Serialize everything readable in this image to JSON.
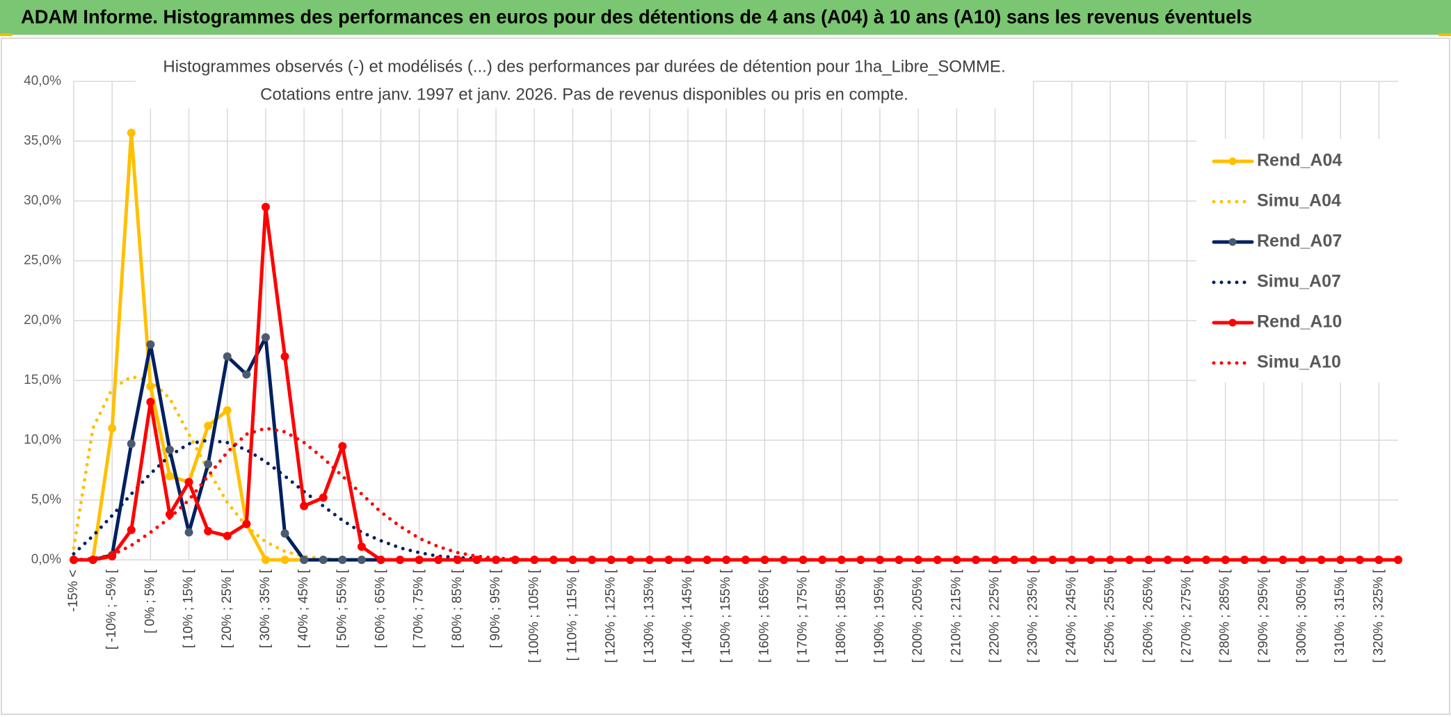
{
  "header": {
    "title": "ADAM Informe. Histogrammes des performances en euros pour des détentions de 4 ans (A04) à 10 ans (A10) sans les revenus éventuels"
  },
  "chart_data": {
    "type": "line",
    "title": [
      "Histogrammes observés (-) et modélisés (...) des performances par durées de détention pour 1ha_Libre_SOMME.",
      "Cotations entre janv. 1997 et janv. 2026. Pas de revenus disponibles ou pris en compte."
    ],
    "categories": [
      "-15% <",
      null,
      "[ -10% ; -5% [",
      null,
      "[ 0% ; 5% [",
      null,
      "[ 10% ; 15% [",
      null,
      "[ 20% ; 25% [",
      null,
      "[ 30% ; 35% [",
      null,
      "[ 40% ; 45% [",
      null,
      "[ 50% ; 55% [",
      null,
      "[ 60% ; 65% [",
      null,
      "[ 70% ; 75% [",
      null,
      "[ 80% ; 85% [",
      null,
      "[ 90% ; 95% [",
      null,
      "[ 100% ; 105% [",
      null,
      "[ 110% ; 115% [",
      null,
      "[ 120% ; 125% [",
      null,
      "[ 130% ; 135% [",
      null,
      "[ 140% ; 145% [",
      null,
      "[ 150% ; 155% [",
      null,
      "[ 160% ; 165% [",
      null,
      "[ 170% ; 175% [",
      null,
      "[ 180% ; 185% [",
      null,
      "[ 190% ; 195% [",
      null,
      "[ 200% ; 205% [",
      null,
      "[ 210% ; 215% [",
      null,
      "[ 220% ; 225% [",
      null,
      "[ 230% ; 235% [",
      null,
      "[ 240% ; 245% [",
      null,
      "[ 250% ; 255% [",
      null,
      "[ 260% ; 265% [",
      null,
      "[ 270% ; 275% [",
      null,
      "[ 280% ; 285% [",
      null,
      "[ 290% ; 295% [",
      null,
      "[ 300% ; 305% [",
      null,
      "[ 310% ; 315% [",
      null,
      "[ 320% ; 325% [",
      null
    ],
    "ylim": [
      0,
      40
    ],
    "yticks": [
      {
        "value": 0,
        "label": "0,0%"
      },
      {
        "value": 5,
        "label": "5,0%"
      },
      {
        "value": 10,
        "label": "10,0%"
      },
      {
        "value": 15,
        "label": "15,0%"
      },
      {
        "value": 20,
        "label": "20,0%"
      },
      {
        "value": 25,
        "label": "25,0%"
      },
      {
        "value": 30,
        "label": "30,0%"
      },
      {
        "value": 35,
        "label": "35,0%"
      },
      {
        "value": 40,
        "label": "40,0%"
      }
    ],
    "grid": true,
    "legend": "right",
    "series": [
      {
        "name": "Rend_A04",
        "color": "#FFC000",
        "style": "solid",
        "markers": true,
        "marker_color": "#FFC000",
        "values": [
          0,
          0,
          11,
          35.7,
          14.5,
          7,
          6.5,
          11.2,
          12.5,
          3,
          0,
          0,
          0,
          0,
          0,
          0,
          0,
          0,
          0,
          0,
          0,
          0,
          0,
          0,
          0,
          0,
          0,
          0,
          0,
          0,
          0,
          0,
          0,
          0,
          0,
          0,
          0,
          0,
          0,
          0,
          0,
          0,
          0,
          0,
          0,
          0,
          0,
          0,
          0,
          0,
          0,
          0,
          0,
          0,
          0,
          0,
          0,
          0,
          0,
          0,
          0,
          0,
          0,
          0,
          0,
          0,
          0,
          0,
          0,
          0
        ]
      },
      {
        "name": "Simu_A04",
        "color": "#FFC000",
        "style": "dotted",
        "markers": false,
        "values": [
          1,
          11,
          14.3,
          15.3,
          15,
          13.5,
          10.5,
          7.5,
          4.8,
          2.8,
          1.5,
          0.7,
          0.3,
          0.1,
          0,
          0,
          0,
          0,
          0,
          0,
          0,
          0,
          0,
          0,
          0,
          0,
          0,
          0,
          0,
          0,
          0,
          0,
          0,
          0,
          0,
          0,
          0,
          0,
          0,
          0,
          0,
          0,
          0,
          0,
          0,
          0,
          0,
          0,
          0,
          0,
          0,
          0,
          0,
          0,
          0,
          0,
          0,
          0,
          0,
          0,
          0,
          0,
          0,
          0,
          0,
          0,
          0,
          0,
          0,
          0
        ]
      },
      {
        "name": "Rend_A07",
        "color": "#002060",
        "style": "solid",
        "markers": true,
        "marker_color": "#4a5a70",
        "values": [
          0,
          0,
          0.4,
          9.7,
          18,
          9.2,
          2.3,
          8,
          17,
          15.5,
          18.6,
          2.2,
          0,
          0,
          0,
          0,
          0,
          0,
          0,
          0,
          0,
          0,
          0,
          0,
          0,
          0,
          0,
          0,
          0,
          0,
          0,
          0,
          0,
          0,
          0,
          0,
          0,
          0,
          0,
          0,
          0,
          0,
          0,
          0,
          0,
          0,
          0,
          0,
          0,
          0,
          0,
          0,
          0,
          0,
          0,
          0,
          0,
          0,
          0,
          0,
          0,
          0,
          0,
          0,
          0,
          0,
          0,
          0,
          0,
          0
        ]
      },
      {
        "name": "Simu_A07",
        "color": "#002060",
        "style": "dotted",
        "markers": false,
        "values": [
          0.5,
          2,
          3.7,
          5.5,
          7.2,
          8.7,
          9.7,
          10,
          9.8,
          9.2,
          8.2,
          7,
          5.7,
          4.5,
          3.3,
          2.3,
          1.6,
          1,
          0.6,
          0.3,
          0.2,
          0.1,
          0,
          0,
          0,
          0,
          0,
          0,
          0,
          0,
          0,
          0,
          0,
          0,
          0,
          0,
          0,
          0,
          0,
          0,
          0,
          0,
          0,
          0,
          0,
          0,
          0,
          0,
          0,
          0,
          0,
          0,
          0,
          0,
          0,
          0,
          0,
          0,
          0,
          0,
          0,
          0,
          0,
          0,
          0,
          0,
          0,
          0,
          0,
          0
        ]
      },
      {
        "name": "Rend_A10",
        "color": "#FF0000",
        "style": "solid",
        "markers": true,
        "marker_color": "#FF0000",
        "values": [
          0,
          0,
          0.3,
          2.5,
          13.2,
          3.8,
          6.5,
          2.4,
          2,
          3,
          29.5,
          17,
          4.5,
          5.2,
          9.5,
          1.1,
          0,
          0,
          0,
          0,
          0,
          0,
          0,
          0,
          0,
          0,
          0,
          0,
          0,
          0,
          0,
          0,
          0,
          0,
          0,
          0,
          0,
          0,
          0,
          0,
          0,
          0,
          0,
          0,
          0,
          0,
          0,
          0,
          0,
          0,
          0,
          0,
          0,
          0,
          0,
          0,
          0,
          0,
          0,
          0,
          0,
          0,
          0,
          0,
          0,
          0,
          0,
          0,
          0,
          0
        ]
      },
      {
        "name": "Simu_A10",
        "color": "#FF0000",
        "style": "dotted",
        "markers": false,
        "values": [
          0,
          0.1,
          0.4,
          1.2,
          2.3,
          3.5,
          5,
          7,
          9,
          10.5,
          11,
          10.7,
          9.8,
          8.5,
          7,
          5.5,
          4,
          2.8,
          1.8,
          1.1,
          0.6,
          0.3,
          0.15,
          0.05,
          0,
          0,
          0,
          0,
          0,
          0,
          0,
          0,
          0,
          0,
          0,
          0,
          0,
          0,
          0,
          0,
          0,
          0,
          0,
          0,
          0,
          0,
          0,
          0,
          0,
          0,
          0,
          0,
          0,
          0,
          0,
          0,
          0,
          0,
          0,
          0,
          0,
          0,
          0,
          0,
          0,
          0,
          0,
          0,
          0,
          0
        ]
      }
    ]
  }
}
